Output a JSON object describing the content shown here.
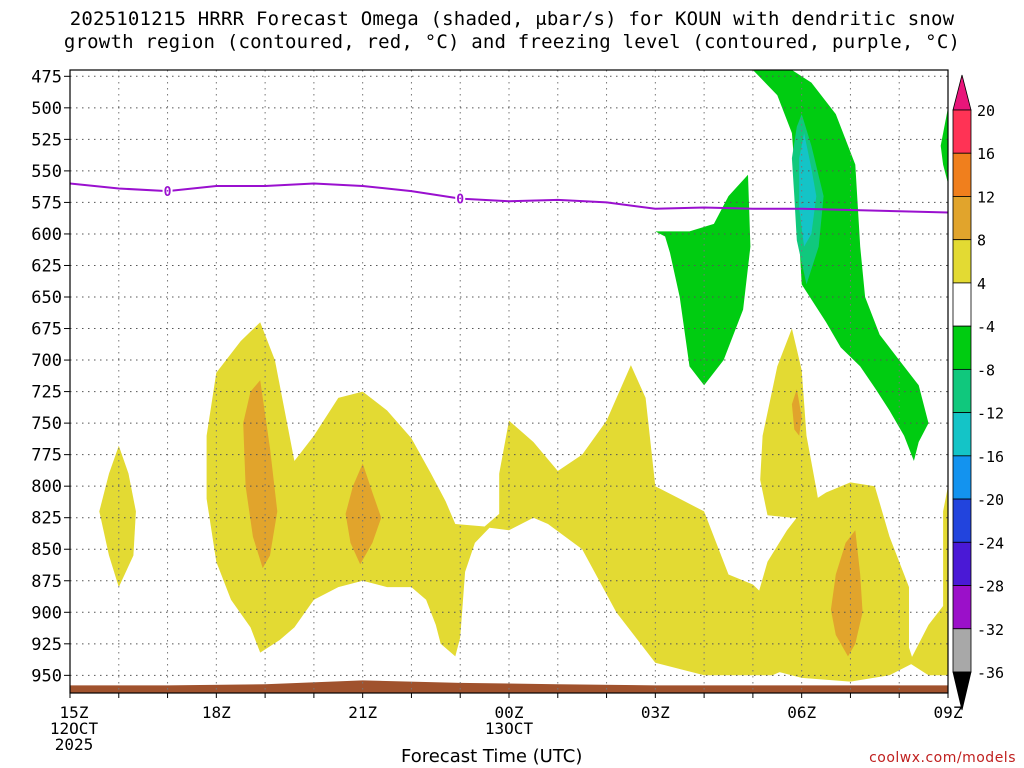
{
  "title": {
    "line1": "2025101215 HRRR Forecast Omega (shaded, μbar/s) for KOUN with dendritic snow",
    "line2": "growth region (contoured, red, °C) and freezing level (contoured, purple, °C)"
  },
  "credit": "coolwx.com/models",
  "chart_data": {
    "type": "time-height cross section (filled contour)",
    "xlabel": "Forecast Time (UTC)",
    "ylabel": "",
    "xlim": [
      0,
      18
    ],
    "ylim": [
      964,
      470
    ],
    "y_ticks": [
      475,
      500,
      525,
      550,
      575,
      600,
      625,
      650,
      675,
      700,
      725,
      750,
      775,
      800,
      825,
      850,
      875,
      900,
      925,
      950
    ],
    "x_ticks": [
      {
        "hour": 0,
        "lines": [
          "15Z",
          "12OCT",
          "2025"
        ]
      },
      {
        "hour": 3,
        "lines": [
          "18Z"
        ]
      },
      {
        "hour": 6,
        "lines": [
          "21Z"
        ]
      },
      {
        "hour": 9,
        "lines": [
          "00Z",
          "13OCT"
        ]
      },
      {
        "hour": 12,
        "lines": [
          "03Z"
        ]
      },
      {
        "hour": 15,
        "lines": [
          "06Z"
        ]
      },
      {
        "hour": 18,
        "lines": [
          "09Z"
        ]
      }
    ],
    "colorbar": {
      "labels": [
        "20",
        "16",
        "12",
        "8",
        "4",
        "-4",
        "-8",
        "-12",
        "-16",
        "-20",
        "-24",
        "-28",
        "-32",
        "-36"
      ],
      "levels": [
        {
          "range": "16 to 20",
          "color": "#ff3355"
        },
        {
          "range": "12 to 16",
          "color": "#f07f1d"
        },
        {
          "range": "8 to 12",
          "color": "#e1a42c"
        },
        {
          "range": "4 to 8",
          "color": "#e3da33"
        },
        {
          "range": "-4 to 4",
          "color": "#ffffff"
        },
        {
          "range": "-8 to -4",
          "color": "#00cc11"
        },
        {
          "range": "-12 to -8",
          "color": "#10c87d"
        },
        {
          "range": "-16 to -12",
          "color": "#14c4c7"
        },
        {
          "range": "-20 to -16",
          "color": "#1393ef"
        },
        {
          "range": "-24 to -20",
          "color": "#2244dd"
        },
        {
          "range": "-28 to -24",
          "color": "#4a19d6"
        },
        {
          "range": "-32 to -28",
          "color": "#9b10c9"
        },
        {
          "range": "-36 to -32",
          "color": "#a8a8a8"
        }
      ],
      "top_color": "#e8157a",
      "bottom_color": "#000000"
    },
    "freezing_level": {
      "color": "#9a10cf",
      "contour_label": "0",
      "points": [
        [
          0,
          560
        ],
        [
          1,
          564
        ],
        [
          2,
          566
        ],
        [
          3,
          562
        ],
        [
          4,
          562
        ],
        [
          5,
          560
        ],
        [
          6,
          562
        ],
        [
          7,
          566
        ],
        [
          8,
          572
        ],
        [
          9,
          574
        ],
        [
          10,
          573
        ],
        [
          11,
          575
        ],
        [
          12,
          580
        ],
        [
          13,
          579
        ],
        [
          14,
          580
        ],
        [
          15,
          580
        ],
        [
          16,
          581
        ],
        [
          17,
          582
        ],
        [
          18,
          583
        ]
      ],
      "label_hours": [
        2,
        8
      ]
    },
    "omega_regions": [
      {
        "name": "yellow-blob-early",
        "value": "4 to 8",
        "color": "#e3da33",
        "points": [
          [
            0.6,
            820
          ],
          [
            0.8,
            790
          ],
          [
            1.0,
            768
          ],
          [
            1.2,
            790
          ],
          [
            1.35,
            820
          ],
          [
            1.3,
            855
          ],
          [
            1.0,
            880
          ],
          [
            0.8,
            855
          ]
        ]
      },
      {
        "name": "yellow-main-cluster",
        "value": "4 to 8",
        "color": "#e3da33",
        "points": [
          [
            2.8,
            760
          ],
          [
            3.0,
            710
          ],
          [
            3.5,
            685
          ],
          [
            3.9,
            670
          ],
          [
            4.2,
            700
          ],
          [
            4.6,
            780
          ],
          [
            5.0,
            760
          ],
          [
            5.5,
            730
          ],
          [
            6.0,
            725
          ],
          [
            6.5,
            740
          ],
          [
            7.0,
            762
          ],
          [
            7.4,
            790
          ],
          [
            7.7,
            812
          ],
          [
            7.9,
            830
          ],
          [
            8.5,
            832
          ],
          [
            8.8,
            822
          ],
          [
            8.8,
            790
          ],
          [
            9.0,
            748
          ],
          [
            9.5,
            765
          ],
          [
            10.0,
            788
          ],
          [
            10.5,
            775
          ],
          [
            11.0,
            748
          ],
          [
            11.5,
            704
          ],
          [
            11.8,
            730
          ],
          [
            12.0,
            800
          ],
          [
            12.5,
            810
          ],
          [
            13.0,
            820
          ],
          [
            13.5,
            870
          ],
          [
            14.0,
            878
          ],
          [
            14.5,
            897
          ],
          [
            14.7,
            945
          ],
          [
            14.4,
            950
          ],
          [
            13.0,
            950
          ],
          [
            12.0,
            940
          ],
          [
            11.2,
            900
          ],
          [
            10.5,
            850
          ],
          [
            9.8,
            830
          ],
          [
            9.5,
            825
          ],
          [
            9.0,
            835
          ],
          [
            8.6,
            833
          ],
          [
            8.3,
            845
          ],
          [
            8.1,
            868
          ],
          [
            8.0,
            920
          ],
          [
            7.9,
            935
          ],
          [
            7.6,
            925
          ],
          [
            7.5,
            910
          ],
          [
            7.3,
            890
          ],
          [
            7.0,
            880
          ],
          [
            6.5,
            880
          ],
          [
            6.0,
            875
          ],
          [
            5.5,
            880
          ],
          [
            5.0,
            890
          ],
          [
            4.6,
            912
          ],
          [
            4.3,
            922
          ],
          [
            3.9,
            932
          ],
          [
            3.7,
            912
          ],
          [
            3.3,
            890
          ],
          [
            3.0,
            860
          ],
          [
            2.8,
            810
          ]
        ]
      },
      {
        "name": "yellow-blob-05z",
        "value": "4 to 8",
        "color": "#e3da33",
        "points": [
          [
            14.2,
            760
          ],
          [
            14.5,
            705
          ],
          [
            14.8,
            675
          ],
          [
            15.0,
            708
          ],
          [
            15.1,
            760
          ],
          [
            15.3,
            802
          ],
          [
            15.4,
            825
          ],
          [
            14.8,
            825
          ],
          [
            14.3,
            823
          ],
          [
            14.15,
            795
          ]
        ]
      },
      {
        "name": "yellow-blob-late",
        "value": "4 to 8",
        "color": "#e3da33",
        "points": [
          [
            14.0,
            900
          ],
          [
            14.3,
            860
          ],
          [
            14.7,
            835
          ],
          [
            15.1,
            815
          ],
          [
            15.5,
            805
          ],
          [
            16.0,
            797
          ],
          [
            16.5,
            800
          ],
          [
            16.8,
            840
          ],
          [
            17.2,
            880
          ],
          [
            17.2,
            928
          ],
          [
            17.3,
            940
          ],
          [
            16.8,
            950
          ],
          [
            16.0,
            955
          ],
          [
            15.0,
            952
          ],
          [
            14.3,
            945
          ],
          [
            13.9,
            925
          ]
        ]
      },
      {
        "name": "yellow-blob-edge",
        "value": "4 to 8",
        "color": "#e3da33",
        "points": [
          [
            17.2,
            940
          ],
          [
            17.6,
            910
          ],
          [
            17.9,
            895
          ],
          [
            17.9,
            820
          ],
          [
            18.0,
            800
          ],
          [
            18.0,
            950
          ],
          [
            17.6,
            950
          ]
        ]
      },
      {
        "name": "orange-core-19z",
        "value": "8 to 12",
        "color": "#e1a42c",
        "points": [
          [
            3.55,
            750
          ],
          [
            3.7,
            725
          ],
          [
            3.9,
            716
          ],
          [
            4.1,
            770
          ],
          [
            4.25,
            820
          ],
          [
            4.1,
            855
          ],
          [
            3.95,
            865
          ],
          [
            3.75,
            840
          ],
          [
            3.6,
            800
          ]
        ]
      },
      {
        "name": "orange-core-21z",
        "value": "8 to 12",
        "color": "#e1a42c",
        "points": [
          [
            5.65,
            822
          ],
          [
            5.8,
            800
          ],
          [
            6.0,
            782
          ],
          [
            6.2,
            805
          ],
          [
            6.38,
            825
          ],
          [
            6.2,
            845
          ],
          [
            5.95,
            862
          ],
          [
            5.75,
            845
          ]
        ]
      },
      {
        "name": "orange-core-05z",
        "value": "8 to 12",
        "color": "#e1a42c",
        "points": [
          [
            14.8,
            735
          ],
          [
            14.9,
            723
          ],
          [
            15.0,
            745
          ],
          [
            14.95,
            760
          ],
          [
            14.85,
            755
          ]
        ]
      },
      {
        "name": "orange-core-07z",
        "value": "8 to 12",
        "color": "#e1a42c",
        "points": [
          [
            15.6,
            898
          ],
          [
            15.7,
            870
          ],
          [
            15.9,
            845
          ],
          [
            16.1,
            835
          ],
          [
            16.2,
            870
          ],
          [
            16.25,
            900
          ],
          [
            16.1,
            925
          ],
          [
            15.95,
            935
          ],
          [
            15.7,
            918
          ]
        ]
      },
      {
        "name": "green-plume-03z",
        "value": "-8 to -4",
        "color": "#00cc11",
        "points": [
          [
            12.0,
            598
          ],
          [
            12.7,
            598
          ],
          [
            13.2,
            592
          ],
          [
            13.5,
            570
          ],
          [
            13.9,
            553
          ],
          [
            13.95,
            610
          ],
          [
            13.8,
            660
          ],
          [
            13.4,
            700
          ],
          [
            13.0,
            720
          ],
          [
            12.7,
            705
          ],
          [
            12.5,
            650
          ],
          [
            12.3,
            615
          ],
          [
            12.2,
            602
          ]
        ]
      },
      {
        "name": "green-band-06z",
        "value": "-8 to -4",
        "color": "#00cc11",
        "points": [
          [
            14.0,
            470
          ],
          [
            14.2,
            470
          ],
          [
            14.8,
            470
          ],
          [
            15.2,
            480
          ],
          [
            15.7,
            505
          ],
          [
            16.1,
            545
          ],
          [
            16.2,
            610
          ],
          [
            16.3,
            650
          ],
          [
            16.6,
            680
          ],
          [
            17.0,
            700
          ],
          [
            17.4,
            720
          ],
          [
            17.6,
            750
          ],
          [
            17.4,
            765
          ],
          [
            17.3,
            780
          ],
          [
            17.1,
            760
          ],
          [
            16.8,
            740
          ],
          [
            16.5,
            722
          ],
          [
            16.2,
            705
          ],
          [
            15.8,
            690
          ],
          [
            15.5,
            670
          ],
          [
            15.0,
            640
          ],
          [
            14.9,
            570
          ],
          [
            14.8,
            520
          ],
          [
            14.5,
            490
          ]
        ]
      },
      {
        "name": "teal-core-06z",
        "value": "-12 to -8",
        "color": "#10c87d",
        "points": [
          [
            14.8,
            540
          ],
          [
            14.9,
            515
          ],
          [
            15.0,
            505
          ],
          [
            15.2,
            530
          ],
          [
            15.45,
            570
          ],
          [
            15.35,
            610
          ],
          [
            15.1,
            640
          ],
          [
            14.9,
            605
          ],
          [
            14.85,
            570
          ]
        ]
      },
      {
        "name": "cyan-core-06z",
        "value": "-16 to -12",
        "color": "#14c4c7",
        "points": [
          [
            14.95,
            540
          ],
          [
            15.05,
            520
          ],
          [
            15.2,
            548
          ],
          [
            15.3,
            570
          ],
          [
            15.2,
            600
          ],
          [
            15.05,
            610
          ],
          [
            14.95,
            580
          ]
        ]
      },
      {
        "name": "green-sliver-edge",
        "value": "-8 to -4",
        "color": "#00cc11",
        "points": [
          [
            17.85,
            530
          ],
          [
            18.0,
            500
          ],
          [
            18.0,
            560
          ],
          [
            17.9,
            545
          ]
        ]
      }
    ],
    "terrain": {
      "name": "ground",
      "color": "#a0522d",
      "points": [
        [
          0,
          958
        ],
        [
          2,
          958
        ],
        [
          4,
          957
        ],
        [
          6,
          954
        ],
        [
          8,
          956
        ],
        [
          10,
          957
        ],
        [
          12,
          958
        ],
        [
          14,
          958
        ],
        [
          16,
          958
        ],
        [
          18,
          958
        ]
      ]
    }
  }
}
